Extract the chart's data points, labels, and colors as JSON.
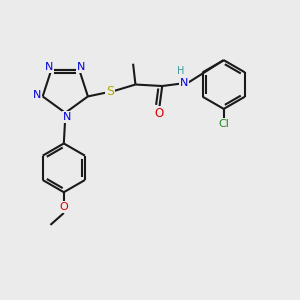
{
  "bg": "#ebebeb",
  "lc": "#1a1a1a",
  "N_color": "#0000dd",
  "S_color": "#aaaa00",
  "O_color": "#dd0000",
  "Cl_color": "#228822",
  "H_color": "#3a9999",
  "lw": 1.5,
  "fs": 7.5,
  "xlim": [
    0,
    10
  ],
  "ylim": [
    0,
    10
  ]
}
